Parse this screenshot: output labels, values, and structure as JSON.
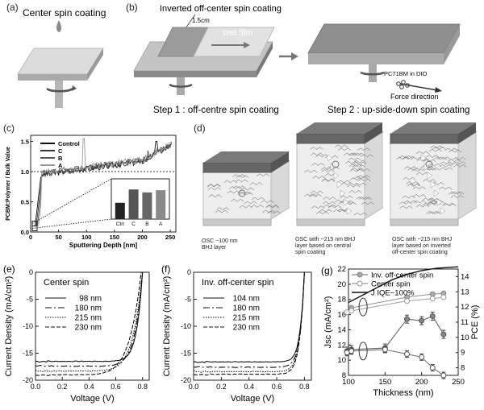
{
  "panel_a": {
    "label": "(a)",
    "title": "Center spin coating"
  },
  "panel_b": {
    "label": "(b)",
    "title": "Inverted off-center spin coating",
    "dim": "1.5cm",
    "film": "wet film",
    "step1": "Step 1 : off-centre spin coating",
    "step2": "Step 2 : up-side-down spin coating",
    "chem": "PC71BM in DIO",
    "force": "Force direction"
  },
  "panel_d": {
    "label": "(d)",
    "cap1": [
      "OSC ~100 nm",
      "BHJ layer"
    ],
    "cap2": [
      "OSC with ~215 nm BHJ",
      "layer  based on central",
      "spin coating"
    ],
    "cap3": [
      "OSC with ~215 nm BHJ",
      "layer based on inverted",
      "off-center spin coating"
    ]
  },
  "chart_data": [
    {
      "panel": "(c)",
      "type": "line",
      "xlabel": "Sputtering Depth [nm]",
      "ylabel": "PCBM:Polymer / Bulk Value",
      "xlim": [
        0,
        260
      ],
      "xticks": [
        0,
        50,
        100,
        150,
        200,
        250
      ],
      "ylim": [
        0,
        1.6
      ],
      "yticks": [
        0.0,
        0.5,
        1.0,
        1.5
      ],
      "series": [
        {
          "name": "Control"
        },
        {
          "name": "C"
        },
        {
          "name": "B"
        },
        {
          "name": "A"
        }
      ],
      "inset": {
        "type": "bar",
        "categories": [
          "Ctrl",
          "C",
          "B",
          "A"
        ],
        "values": [
          0.11,
          0.2,
          0.18,
          0.195
        ],
        "ylim": [
          0,
          0.25
        ]
      }
    },
    {
      "panel": "(e)",
      "type": "line",
      "title": "Center spin",
      "xlabel": "Voltage (V)",
      "ylabel": "Current Density (mA/cm²)",
      "xlim": [
        0,
        0.85
      ],
      "xticks": [
        "0.0",
        "0.2",
        "0.4",
        "0.6",
        "0.8"
      ],
      "ylim": [
        -20,
        0
      ],
      "yticks": [
        "0",
        "-5",
        "-10",
        "-15",
        "-20"
      ],
      "series": [
        {
          "name": "98 nm",
          "jsc": -16.5,
          "voc": 0.8,
          "k": 18
        },
        {
          "name": "180 nm",
          "jsc": -17.4,
          "voc": 0.8,
          "k": 14
        },
        {
          "name": "215 nm",
          "jsc": -18.3,
          "voc": 0.8,
          "k": 11
        },
        {
          "name": "230 nm",
          "jsc": -19.0,
          "voc": 0.79,
          "k": 9
        }
      ]
    },
    {
      "panel": "(f)",
      "type": "line",
      "title": "Inv. off-center spin",
      "xlabel": "Voltage (V)",
      "ylabel": "Current Density (mA/cm²)",
      "xlim": [
        0,
        0.85
      ],
      "xticks": [
        "0.0",
        "0.2",
        "0.4",
        "0.6",
        "0.8"
      ],
      "ylim": [
        -20,
        0
      ],
      "yticks": [
        "0",
        "-5",
        "-10",
        "-15",
        "-20"
      ],
      "series": [
        {
          "name": "104 nm",
          "jsc": -16.6,
          "voc": 0.8,
          "k": 26
        },
        {
          "name": "180 nm",
          "jsc": -17.6,
          "voc": 0.8,
          "k": 25
        },
        {
          "name": "215 nm",
          "jsc": -18.4,
          "voc": 0.8,
          "k": 24
        },
        {
          "name": "230 nm",
          "jsc": -18.9,
          "voc": 0.8,
          "k": 24
        }
      ]
    },
    {
      "panel": "(g)",
      "type": "line",
      "xlabel": "Thickness (nm)",
      "ylabel": "Jsc (mA/cm²)",
      "y2label": "PCE (%)",
      "xlim": [
        100,
        250
      ],
      "xticks": [
        100,
        150,
        200,
        250
      ],
      "ylim": [
        8,
        22
      ],
      "yticks": [
        8,
        10,
        12,
        14,
        16,
        18,
        20,
        22
      ],
      "y2lim": [
        7.5,
        14.5
      ],
      "y2ticks": [
        8,
        9,
        10,
        11,
        12,
        13,
        14
      ],
      "legend": [
        "Inv. off-center spin",
        "Center spin",
        "J IQE~100%"
      ],
      "jsc_inv": {
        "x": [
          98,
          104,
          180,
          215,
          230
        ],
        "y": [
          16.3,
          16.9,
          18.3,
          18.7,
          18.8
        ]
      },
      "jsc_center": {
        "x": [
          98,
          104,
          180,
          215,
          230
        ],
        "y": [
          16.3,
          16.5,
          17.8,
          18.1,
          18.3
        ]
      },
      "jiqe": {
        "x": [
          100,
          120,
          140,
          160,
          180,
          200,
          220,
          250
        ],
        "y": [
          17.6,
          18.6,
          19.6,
          20.6,
          21.3,
          21.8,
          22.1,
          22.3
        ]
      },
      "pce_inv": {
        "x": [
          98,
          104,
          150,
          180,
          200,
          215,
          230
        ],
        "y": [
          9.1,
          9.2,
          9.3,
          11.2,
          11.1,
          11.4,
          10.2
        ]
      },
      "pce_center": {
        "x": [
          98,
          104,
          150,
          180,
          200,
          215,
          230
        ],
        "y": [
          9.0,
          9.1,
          9.2,
          8.9,
          8.7,
          8.0,
          7.5
        ]
      }
    }
  ]
}
